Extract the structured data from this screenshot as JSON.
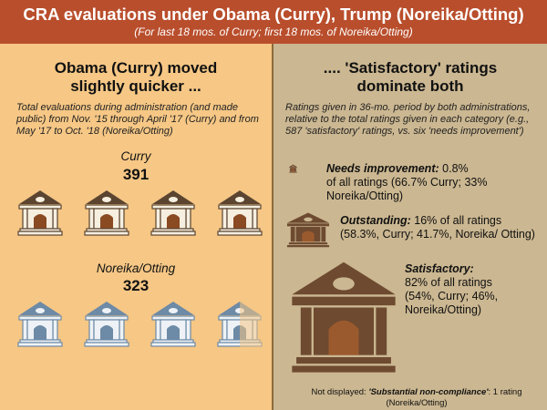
{
  "header": {
    "title": "CRA evaluations under Obama (Curry), Trump (Noreika/Otting)",
    "subtitle": "(For last 18 mos. of Curry; first 18 mos. of Noreika/Otting)"
  },
  "left": {
    "title_line1": "Obama (Curry) moved",
    "title_line2": "slightly quicker ...",
    "description": "Total evaluations during administration (and made public) from Nov. '15 through April '17 (Curry) and from May '17 to Oct. '18 (Noreika/Otting)",
    "curry": {
      "label": "Curry",
      "count": "391"
    },
    "noreika": {
      "label": "Noreika/Otting",
      "count": "323"
    }
  },
  "right": {
    "title_line1": ".... 'Satisfactory' ratings",
    "title_line2": "dominate both",
    "description": "Ratings given in 36-mo. period by both administrations, relative to the total ratings given in each category (e.g., 587 'satisfactory' ratings, vs. six 'needs improvement')",
    "needs_improvement": {
      "label": "Needs improvement:",
      "value": "0.8%",
      "detail": "of all ratings (66.7% Curry; 33% Noreika/Otting)"
    },
    "outstanding": {
      "label": "Outstanding:",
      "value": "16% of all ratings",
      "detail": "(58.3%, Curry; 41.7%, Noreika/ Otting)"
    },
    "satisfactory": {
      "label": "Satisfactory:",
      "value": "82% of  all ratings",
      "detail": "(54%, Curry; 46%, Noreika/Otting)"
    },
    "footnote_prefix": "Not displayed: ",
    "footnote_label": "'Substantial non-compliance'",
    "footnote_rest": ": 1 rating (Noreika/Otting)"
  },
  "colors": {
    "header": "#b94e2c",
    "left_bg": "#f6c785",
    "right_bg": "#cbb791",
    "curry_bank_roof": "#5b4430",
    "curry_bank_door": "#8a4a22",
    "noreika_bank": "#6d8aa6",
    "rating_bank": "#6d4a30",
    "rating_bank_door": "#9b5a2e"
  },
  "icons": {
    "curry_bank": "bank-building-icon",
    "noreika_bank": "bank-building-icon",
    "rating_bank": "bank-building-icon"
  }
}
